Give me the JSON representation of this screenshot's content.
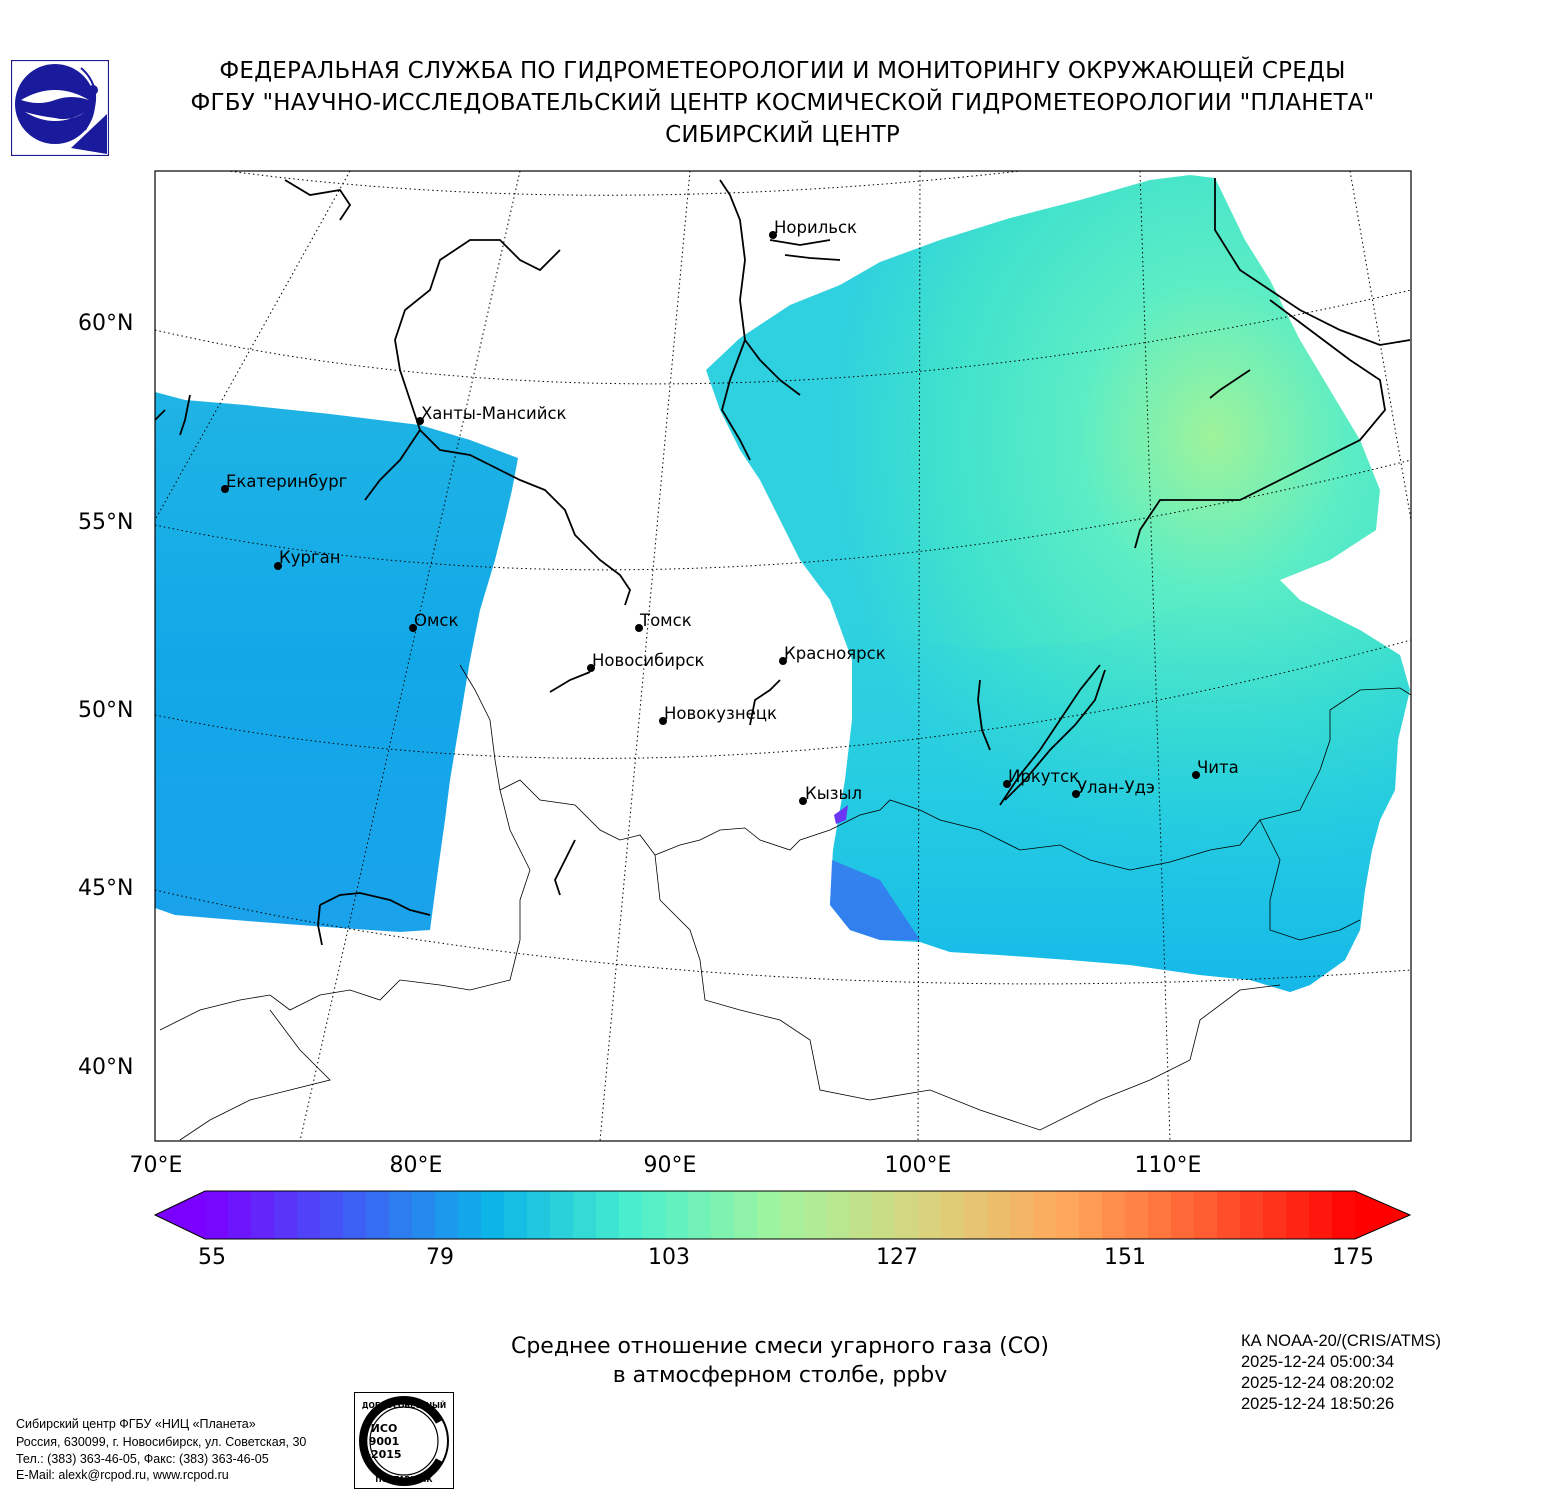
{
  "header": {
    "line1": "ФЕДЕРАЛЬНАЯ СЛУЖБА ПО ГИДРОМЕТЕОРОЛОГИИ И МОНИТОРИНГУ ОКРУЖАЮЩЕЙ СРЕДЫ",
    "line2": "ФГБУ \"НАУЧНО-ИССЛЕДОВАТЕЛЬСКИЙ ЦЕНТР КОСМИЧЕСКОЙ ГИДРОМЕТЕОРОЛОГИИ \"ПЛАНЕТА\"",
    "line3": "СИБИРСКИЙ ЦЕНТР"
  },
  "map": {
    "lat_labels": [
      "60°N",
      "55°N",
      "50°N",
      "45°N",
      "40°N"
    ],
    "lon_labels": [
      "70°E",
      "80°E",
      "90°E",
      "100°E",
      "110°E"
    ],
    "cities": [
      {
        "name": "Норильск"
      },
      {
        "name": "Ханты-Мансийск"
      },
      {
        "name": "Екатеринбург"
      },
      {
        "name": "Курган"
      },
      {
        "name": "Омск"
      },
      {
        "name": "Томск"
      },
      {
        "name": "Новосибирск"
      },
      {
        "name": "Красноярск"
      },
      {
        "name": "Новокузнецк"
      },
      {
        "name": "Кызыл"
      },
      {
        "name": "Иркутск"
      },
      {
        "name": "Улан-Удэ"
      },
      {
        "name": "Чита"
      }
    ],
    "colors": {
      "swath_west": "#17aee6",
      "swath_east": "#3fe1cd",
      "swath_east_high": "#9ff39a"
    }
  },
  "colorbar": {
    "ticks": [
      "55",
      "79",
      "103",
      "127",
      "151",
      "175"
    ],
    "min": 55,
    "max": 175,
    "colors": [
      "#7c00ff",
      "#3f5cf5",
      "#0cb4e8",
      "#4af0cc",
      "#a4f49c",
      "#d8d47e",
      "#ffa75a",
      "#ff5a30",
      "#ff0000"
    ]
  },
  "caption": {
    "line1": "Среднее отношение смеси угарного газа (CO)",
    "line2": "в атмосферном столбе, ppbv"
  },
  "satellite": {
    "name": "КА NOAA-20/(CRIS/ATMS)",
    "times": [
      "2025-12-24 05:00:34",
      "2025-12-24 08:20:02",
      "2025-12-24 18:50:26"
    ]
  },
  "footer": {
    "line1": "Сибирский центр ФГБУ «НИЦ «Планета»",
    "line2": "Россия, 630099, г. Новосибирск, ул. Советская, 30",
    "line3": "Тел.: (383) 363-46-05, Факс: (383) 363-46-05",
    "line4": "E-Mail: alexk@rcpod.ru, www.rcpod.ru"
  },
  "iso_badge": {
    "top_text": "ДОБРОСОВЕСТНЫЙ",
    "center_text": [
      "ИСО",
      "9001",
      "-2015"
    ],
    "bottom_text": "ПОСТАВЩИК"
  }
}
